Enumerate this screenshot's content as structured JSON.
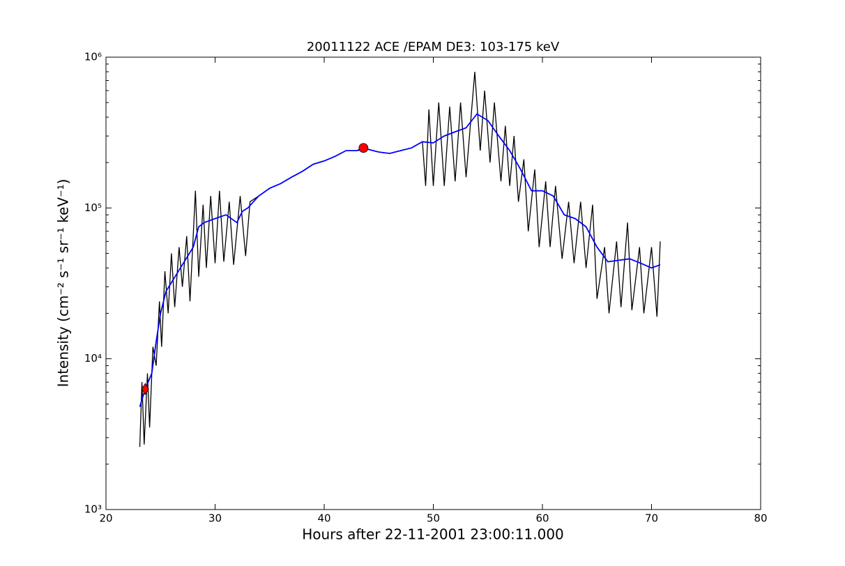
{
  "chart_data": {
    "type": "line",
    "title": "20011122 ACE /EPAM DE3: 103-175 keV",
    "xlabel": "Hours after 22-11-2001 23:00:11.000",
    "ylabel": "Intensity (cm⁻² s⁻¹ sr⁻¹ keV⁻¹)",
    "xlim": [
      20,
      80
    ],
    "xticks": [
      20,
      30,
      40,
      50,
      60,
      70,
      80
    ],
    "ylim": [
      1000,
      1000000
    ],
    "yscale": "log",
    "minor_ticks": true,
    "yticks": [
      {
        "value": 1000,
        "label": "10³"
      },
      {
        "value": 10000,
        "label": "10⁴"
      },
      {
        "value": 100000,
        "label": "10⁵"
      },
      {
        "value": 1000000,
        "label": "10⁶"
      }
    ],
    "series": [
      {
        "color": "#000000",
        "kind": "line",
        "x": [
          23.1,
          23.3,
          23.5,
          23.8,
          24.0,
          24.3,
          24.6,
          24.9,
          25.1,
          25.4,
          25.7,
          26.0,
          26.3,
          26.7,
          27.0,
          27.4,
          27.7,
          28.2,
          28.5,
          28.9,
          29.2,
          29.6,
          30.0,
          30.4,
          30.8,
          31.3,
          31.7,
          32.3,
          32.8,
          33.2,
          34,
          35,
          36,
          37,
          38,
          39,
          40,
          41,
          42,
          43,
          44,
          45,
          46,
          47,
          48,
          49.0,
          49.3,
          49.6,
          50.0,
          50.5,
          51.0,
          51.5,
          52.0,
          52.5,
          53.0,
          53.8,
          54.3,
          54.7,
          55.2,
          55.6,
          56.2,
          56.6,
          57.0,
          57.4,
          57.8,
          58.3,
          58.7,
          59.3,
          59.7,
          60.3,
          60.7,
          61.2,
          61.8,
          62.4,
          62.9,
          63.5,
          64.0,
          64.6,
          65.0,
          65.7,
          66.1,
          66.8,
          67.2,
          67.8,
          68.2,
          68.9,
          69.3,
          70.0,
          70.5,
          70.8
        ],
        "values": [
          2600,
          7000,
          2700,
          8000,
          3500,
          12000,
          9000,
          24000,
          12000,
          38000,
          20000,
          50000,
          22000,
          55000,
          30000,
          65000,
          24000,
          130000,
          35000,
          105000,
          40000,
          120000,
          43000,
          130000,
          44000,
          110000,
          42000,
          120000,
          48000,
          110000,
          120000,
          135000,
          145000,
          160000,
          175000,
          195000,
          205000,
          220000,
          240000,
          240000,
          245000,
          235000,
          230000,
          240000,
          250000,
          275000,
          140000,
          450000,
          140000,
          500000,
          140000,
          470000,
          150000,
          500000,
          160000,
          800000,
          240000,
          600000,
          200000,
          500000,
          150000,
          350000,
          140000,
          300000,
          110000,
          210000,
          70000,
          180000,
          55000,
          150000,
          55000,
          140000,
          46000,
          110000,
          43000,
          110000,
          40000,
          105000,
          25000,
          55000,
          20000,
          60000,
          22000,
          80000,
          21000,
          55000,
          20000,
          55000,
          19000,
          60000
        ]
      },
      {
        "color": "#0000ff",
        "kind": "line",
        "x": [
          23.1,
          23.6,
          24.2,
          24.6,
          25,
          25.5,
          26,
          27,
          28,
          28.5,
          29,
          30,
          31,
          32,
          32.5,
          33,
          34,
          35,
          36,
          37,
          38,
          39,
          40,
          41,
          42,
          43,
          43.6,
          44,
          45,
          46,
          47,
          48,
          49,
          50,
          51,
          52,
          53,
          54,
          55,
          56,
          57,
          58,
          59,
          60,
          61,
          62,
          63,
          64,
          65,
          66,
          67,
          68,
          69,
          70,
          70.8
        ],
        "values": [
          4800,
          6300,
          8000,
          13000,
          20000,
          28000,
          32000,
          42000,
          55000,
          75000,
          80000,
          85000,
          90000,
          80000,
          95000,
          100000,
          120000,
          135000,
          145000,
          160000,
          175000,
          195000,
          205000,
          220000,
          240000,
          240000,
          250000,
          245000,
          235000,
          230000,
          240000,
          250000,
          275000,
          270000,
          300000,
          320000,
          340000,
          420000,
          380000,
          300000,
          240000,
          180000,
          130000,
          130000,
          120000,
          90000,
          85000,
          75000,
          55000,
          44000,
          45000,
          46000,
          43000,
          40000,
          42000
        ]
      },
      {
        "color": "#ff0000",
        "kind": "marker",
        "marker": "diamond",
        "x": [
          23.6
        ],
        "values": [
          6300
        ]
      },
      {
        "color": "#ff0000",
        "kind": "marker",
        "marker": "circle",
        "x": [
          43.6
        ],
        "values": [
          250000
        ]
      }
    ]
  }
}
